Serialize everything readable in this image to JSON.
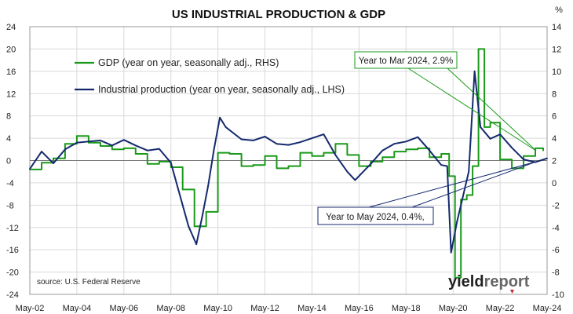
{
  "chart_data": {
    "type": "line",
    "title": "US INDUSTRIAL PRODUCTION & GDP",
    "right_axis_unit": "%",
    "source": "source: U.S. Federal Reserve",
    "brand": {
      "text_a": "yield",
      "text_b": "report",
      "color_a": "#222222",
      "color_b": "#666666"
    },
    "colors": {
      "gdp": "#1a9a1a",
      "ip": "#142a6e",
      "grid": "#d9d9d9",
      "frame": "#999999"
    },
    "x_ticks": [
      "May-02",
      "May-04",
      "May-06",
      "May-08",
      "May-10",
      "May-12",
      "May-14",
      "May-16",
      "May-18",
      "May-20",
      "May-22",
      "May-24"
    ],
    "x_range": [
      "2002-05",
      "2024-05"
    ],
    "left_axis": {
      "min": -24,
      "max": 24,
      "ticks": [
        "24",
        "20",
        "16",
        "12",
        "8",
        "4",
        "0",
        "-4",
        "-8",
        "-12",
        "-16",
        "-20",
        "-24"
      ]
    },
    "right_axis": {
      "min": -10,
      "max": 14,
      "ticks": [
        "14",
        "12",
        "10",
        "8",
        "6",
        "4",
        "2",
        "0",
        "-2",
        "-4",
        "-6",
        "-8",
        "-10"
      ]
    },
    "series": [
      {
        "key": "gdp",
        "name": "GDP (year on year, seasonally adj., RHS)",
        "axis": "right",
        "x": [
          "2002-05",
          "2002-11",
          "2003-05",
          "2003-11",
          "2004-05",
          "2004-11",
          "2005-05",
          "2005-11",
          "2006-05",
          "2006-11",
          "2007-05",
          "2007-11",
          "2008-05",
          "2008-11",
          "2009-05",
          "2009-11",
          "2010-05",
          "2010-11",
          "2011-05",
          "2011-11",
          "2012-05",
          "2012-11",
          "2013-05",
          "2013-11",
          "2014-05",
          "2014-11",
          "2015-05",
          "2015-11",
          "2016-05",
          "2016-11",
          "2017-05",
          "2017-11",
          "2018-05",
          "2018-11",
          "2019-05",
          "2019-11",
          "2020-03",
          "2020-06",
          "2020-09",
          "2020-12",
          "2021-03",
          "2021-06",
          "2021-09",
          "2021-12",
          "2022-05",
          "2022-11",
          "2023-05",
          "2023-11",
          "2024-03"
        ],
        "values": [
          1.2,
          1.8,
          2.2,
          3.5,
          4.2,
          3.6,
          3.3,
          3.0,
          3.1,
          2.6,
          1.7,
          1.9,
          1.4,
          -0.6,
          -3.9,
          -2.6,
          2.7,
          2.6,
          1.5,
          1.6,
          2.4,
          1.3,
          1.5,
          2.7,
          2.4,
          2.7,
          3.5,
          2.5,
          1.5,
          1.9,
          2.3,
          2.8,
          3.0,
          3.1,
          2.3,
          2.6,
          0.6,
          -8.5,
          -1.5,
          -1.1,
          1.5,
          12.0,
          5.0,
          5.4,
          2.1,
          1.3,
          2.4,
          3.1,
          2.9
        ]
      },
      {
        "key": "ip",
        "name": "Industrial production (year on year, seasonally adj., LHS)",
        "axis": "left",
        "x": [
          "2002-05",
          "2002-11",
          "2003-05",
          "2003-11",
          "2004-05",
          "2004-11",
          "2005-05",
          "2005-11",
          "2006-05",
          "2006-11",
          "2007-05",
          "2007-11",
          "2008-05",
          "2008-08",
          "2008-11",
          "2009-02",
          "2009-06",
          "2009-09",
          "2009-12",
          "2010-03",
          "2010-06",
          "2010-09",
          "2011-05",
          "2011-11",
          "2012-05",
          "2012-11",
          "2013-05",
          "2013-11",
          "2014-05",
          "2014-11",
          "2015-05",
          "2015-11",
          "2016-03",
          "2016-11",
          "2017-05",
          "2017-11",
          "2018-05",
          "2018-11",
          "2019-05",
          "2019-11",
          "2020-02",
          "2020-04",
          "2020-07",
          "2020-10",
          "2021-01",
          "2021-04",
          "2021-07",
          "2021-12",
          "2022-05",
          "2022-11",
          "2023-05",
          "2023-11",
          "2024-05"
        ],
        "values": [
          -1.5,
          1.6,
          -0.5,
          2.0,
          3.2,
          3.4,
          3.6,
          2.7,
          3.7,
          2.7,
          1.8,
          2.1,
          -0.4,
          -4.2,
          -8.0,
          -11.8,
          -15.0,
          -10.0,
          -4.5,
          2.0,
          7.7,
          6.0,
          3.8,
          3.6,
          4.3,
          3.0,
          2.8,
          3.3,
          4.0,
          4.7,
          1.0,
          -2.0,
          -3.5,
          -0.6,
          1.8,
          3.0,
          3.4,
          4.2,
          1.8,
          -0.8,
          -1.0,
          -16.5,
          -11.0,
          -6.5,
          -2.0,
          16.0,
          6.0,
          3.9,
          4.7,
          2.3,
          0.2,
          -0.3,
          0.4
        ]
      }
    ],
    "annotations": [
      {
        "key": "gdp_note",
        "text": "Year to Mar 2024, 2.9%",
        "series": "gdp"
      },
      {
        "key": "ip_note",
        "text": "Year to May 2024, 0.4%,",
        "series": "ip"
      }
    ]
  }
}
